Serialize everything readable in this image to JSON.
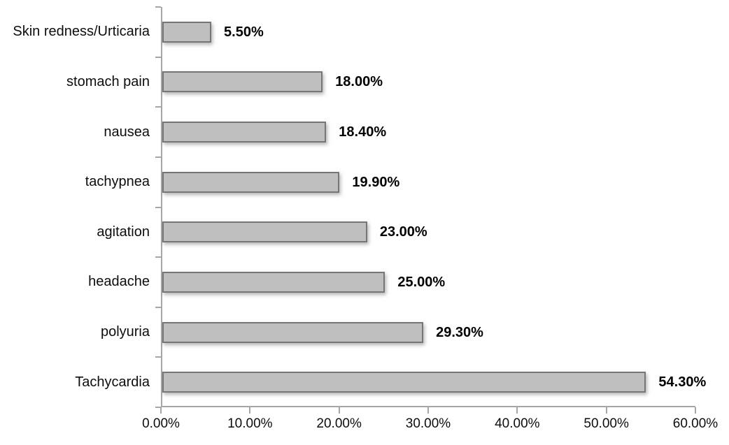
{
  "chart_data": {
    "type": "bar",
    "orientation": "horizontal",
    "title": "",
    "xlabel": "",
    "ylabel": "",
    "grid": false,
    "legend": false,
    "categories": [
      "Skin redness/Urticaria",
      "stomach pain",
      "nausea",
      "tachypnea",
      "agitation",
      "headache",
      "polyuria",
      "Tachycardia"
    ],
    "values": [
      5.5,
      18.0,
      18.4,
      19.9,
      23.0,
      25.0,
      29.3,
      54.3
    ],
    "value_labels": [
      "5.50%",
      "18.00%",
      "18.40%",
      "19.90%",
      "23.00%",
      "25.00%",
      "29.30%",
      "54.30%"
    ],
    "x_ticks": [
      "0.00%",
      "10.00%",
      "20.00%",
      "30.00%",
      "40.00%",
      "50.00%",
      "60.00%"
    ],
    "x_tick_values": [
      0,
      10,
      20,
      30,
      40,
      50,
      60
    ],
    "xlim": [
      0,
      60
    ],
    "colors": {
      "bar_fill": "#bfbfbf",
      "bar_border": "#767676",
      "axis": "#a6a6a6",
      "text": "#0d0d0d"
    }
  }
}
